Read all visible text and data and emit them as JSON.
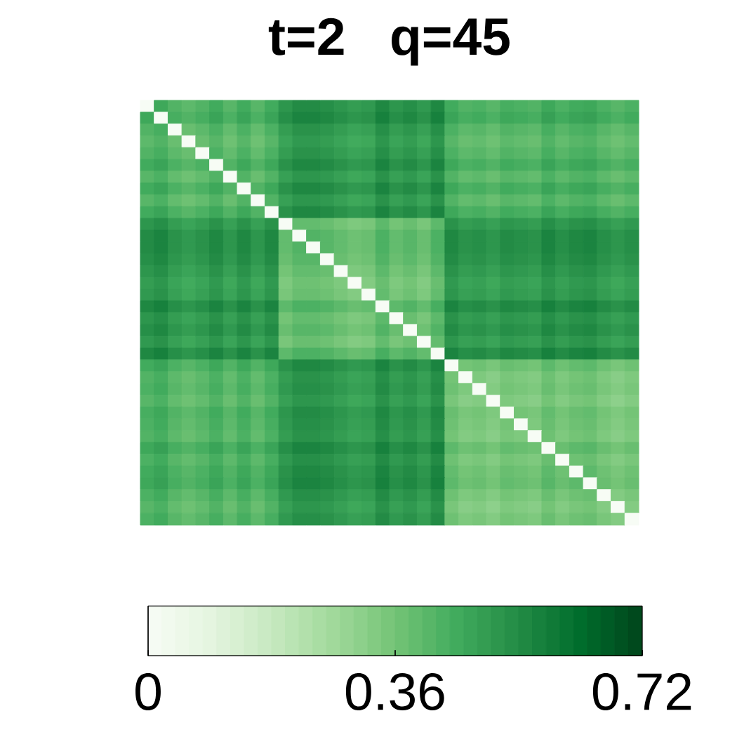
{
  "chart_data": {
    "type": "heatmap",
    "title": "t=2   q=45",
    "categories": [
      null,
      null,
      null,
      null,
      null,
      null,
      null,
      null,
      null,
      null,
      null,
      null,
      null,
      null,
      null,
      null,
      null,
      null,
      null,
      null,
      null,
      null,
      null,
      null,
      null,
      null,
      null,
      null,
      null,
      null,
      null,
      null,
      null,
      null,
      null,
      null
    ],
    "y_categories": [
      null,
      null,
      null,
      null,
      null,
      null,
      null,
      null,
      null,
      null,
      null,
      null,
      null,
      null,
      null,
      null,
      null,
      null,
      null,
      null,
      null,
      null,
      null,
      null,
      null,
      null,
      null,
      null,
      null,
      null,
      null,
      null,
      null,
      null,
      null,
      null
    ],
    "cells": [
      [
        0,
        0.46,
        0.42,
        0.4,
        0.42,
        0.45,
        0.41,
        0.45,
        0.41,
        0.45,
        0.51,
        0.54,
        0.54,
        0.53,
        0.51,
        0.49,
        0.5,
        0.55,
        0.51,
        0.53,
        0.5,
        0.55,
        0.45,
        0.42,
        0.43,
        0.41,
        0.44,
        0.43,
        0.42,
        0.46,
        0.43,
        0.45,
        0.46,
        0.43,
        0.41,
        0.43
      ],
      [
        0.46,
        0,
        0.44,
        0.42,
        0.44,
        0.47,
        0.43,
        0.47,
        0.43,
        0.47,
        0.53,
        0.56,
        0.56,
        0.55,
        0.53,
        0.51,
        0.52,
        0.57,
        0.53,
        0.55,
        0.52,
        0.57,
        0.47,
        0.44,
        0.45,
        0.43,
        0.46,
        0.45,
        0.44,
        0.48,
        0.45,
        0.47,
        0.48,
        0.45,
        0.43,
        0.45
      ],
      [
        0.42,
        0.44,
        0,
        0.38,
        0.4,
        0.43,
        0.39,
        0.43,
        0.39,
        0.43,
        0.49,
        0.52,
        0.52,
        0.51,
        0.49,
        0.47,
        0.48,
        0.53,
        0.49,
        0.51,
        0.48,
        0.53,
        0.43,
        0.4,
        0.41,
        0.39,
        0.42,
        0.41,
        0.4,
        0.44,
        0.41,
        0.43,
        0.44,
        0.41,
        0.39,
        0.41
      ],
      [
        0.4,
        0.42,
        0.38,
        0,
        0.38,
        0.41,
        0.37,
        0.41,
        0.37,
        0.41,
        0.47,
        0.5,
        0.5,
        0.49,
        0.47,
        0.45,
        0.46,
        0.51,
        0.47,
        0.49,
        0.46,
        0.51,
        0.41,
        0.38,
        0.39,
        0.37,
        0.4,
        0.39,
        0.38,
        0.42,
        0.39,
        0.41,
        0.42,
        0.39,
        0.37,
        0.39
      ],
      [
        0.42,
        0.44,
        0.4,
        0.38,
        0,
        0.43,
        0.39,
        0.43,
        0.39,
        0.43,
        0.49,
        0.52,
        0.52,
        0.51,
        0.49,
        0.47,
        0.48,
        0.53,
        0.49,
        0.51,
        0.48,
        0.53,
        0.43,
        0.4,
        0.41,
        0.39,
        0.42,
        0.41,
        0.4,
        0.44,
        0.41,
        0.43,
        0.44,
        0.41,
        0.39,
        0.41
      ],
      [
        0.45,
        0.47,
        0.43,
        0.41,
        0.43,
        0,
        0.42,
        0.46,
        0.42,
        0.46,
        0.52,
        0.55,
        0.55,
        0.54,
        0.52,
        0.5,
        0.51,
        0.56,
        0.52,
        0.54,
        0.51,
        0.56,
        0.46,
        0.43,
        0.44,
        0.42,
        0.45,
        0.44,
        0.43,
        0.47,
        0.44,
        0.46,
        0.47,
        0.44,
        0.42,
        0.44
      ],
      [
        0.41,
        0.43,
        0.39,
        0.37,
        0.39,
        0.42,
        0,
        0.42,
        0.38,
        0.42,
        0.48,
        0.51,
        0.51,
        0.5,
        0.48,
        0.46,
        0.47,
        0.52,
        0.48,
        0.5,
        0.47,
        0.52,
        0.42,
        0.39,
        0.4,
        0.38,
        0.41,
        0.4,
        0.39,
        0.43,
        0.4,
        0.42,
        0.43,
        0.4,
        0.38,
        0.4
      ],
      [
        0.45,
        0.47,
        0.43,
        0.41,
        0.43,
        0.46,
        0.42,
        0,
        0.42,
        0.46,
        0.52,
        0.55,
        0.55,
        0.54,
        0.52,
        0.5,
        0.51,
        0.56,
        0.52,
        0.54,
        0.51,
        0.56,
        0.46,
        0.43,
        0.44,
        0.42,
        0.45,
        0.44,
        0.43,
        0.47,
        0.44,
        0.46,
        0.47,
        0.44,
        0.42,
        0.44
      ],
      [
        0.41,
        0.43,
        0.39,
        0.37,
        0.39,
        0.42,
        0.38,
        0.42,
        0,
        0.42,
        0.48,
        0.51,
        0.51,
        0.5,
        0.48,
        0.46,
        0.47,
        0.52,
        0.48,
        0.5,
        0.47,
        0.52,
        0.42,
        0.39,
        0.4,
        0.38,
        0.41,
        0.4,
        0.39,
        0.43,
        0.4,
        0.42,
        0.43,
        0.4,
        0.38,
        0.4
      ],
      [
        0.45,
        0.47,
        0.43,
        0.41,
        0.43,
        0.46,
        0.42,
        0.46,
        0.42,
        0,
        0.52,
        0.55,
        0.55,
        0.54,
        0.52,
        0.5,
        0.51,
        0.56,
        0.52,
        0.54,
        0.51,
        0.56,
        0.46,
        0.43,
        0.44,
        0.42,
        0.45,
        0.44,
        0.43,
        0.47,
        0.44,
        0.46,
        0.47,
        0.44,
        0.42,
        0.44
      ],
      [
        0.51,
        0.53,
        0.49,
        0.47,
        0.49,
        0.52,
        0.48,
        0.52,
        0.48,
        0.52,
        0,
        0.39,
        0.39,
        0.38,
        0.36,
        0.34,
        0.35,
        0.4,
        0.36,
        0.38,
        0.35,
        0.4,
        0.52,
        0.49,
        0.5,
        0.48,
        0.51,
        0.5,
        0.49,
        0.53,
        0.5,
        0.52,
        0.53,
        0.5,
        0.48,
        0.5
      ],
      [
        0.54,
        0.56,
        0.52,
        0.5,
        0.52,
        0.55,
        0.51,
        0.55,
        0.51,
        0.55,
        0.39,
        0,
        0.42,
        0.41,
        0.39,
        0.37,
        0.38,
        0.43,
        0.39,
        0.41,
        0.38,
        0.43,
        0.55,
        0.52,
        0.53,
        0.51,
        0.54,
        0.53,
        0.52,
        0.56,
        0.53,
        0.55,
        0.56,
        0.53,
        0.51,
        0.53
      ],
      [
        0.54,
        0.56,
        0.52,
        0.5,
        0.52,
        0.55,
        0.51,
        0.55,
        0.51,
        0.55,
        0.39,
        0.42,
        0,
        0.41,
        0.39,
        0.37,
        0.38,
        0.43,
        0.39,
        0.41,
        0.38,
        0.43,
        0.55,
        0.52,
        0.53,
        0.51,
        0.54,
        0.53,
        0.52,
        0.56,
        0.53,
        0.55,
        0.56,
        0.53,
        0.51,
        0.53
      ],
      [
        0.53,
        0.55,
        0.51,
        0.49,
        0.51,
        0.54,
        0.5,
        0.54,
        0.5,
        0.54,
        0.38,
        0.41,
        0.41,
        0,
        0.38,
        0.36,
        0.37,
        0.42,
        0.38,
        0.4,
        0.37,
        0.42,
        0.54,
        0.51,
        0.52,
        0.5,
        0.53,
        0.52,
        0.51,
        0.55,
        0.52,
        0.54,
        0.55,
        0.52,
        0.5,
        0.52
      ],
      [
        0.51,
        0.53,
        0.49,
        0.47,
        0.49,
        0.52,
        0.48,
        0.52,
        0.48,
        0.52,
        0.36,
        0.39,
        0.39,
        0.38,
        0,
        0.34,
        0.35,
        0.4,
        0.36,
        0.38,
        0.35,
        0.4,
        0.52,
        0.49,
        0.5,
        0.48,
        0.51,
        0.5,
        0.49,
        0.53,
        0.5,
        0.52,
        0.53,
        0.5,
        0.48,
        0.5
      ],
      [
        0.49,
        0.51,
        0.47,
        0.45,
        0.47,
        0.5,
        0.46,
        0.5,
        0.46,
        0.5,
        0.34,
        0.37,
        0.37,
        0.36,
        0.34,
        0,
        0.33,
        0.38,
        0.34,
        0.36,
        0.33,
        0.38,
        0.5,
        0.47,
        0.48,
        0.46,
        0.49,
        0.48,
        0.47,
        0.51,
        0.48,
        0.5,
        0.51,
        0.48,
        0.46,
        0.48
      ],
      [
        0.5,
        0.52,
        0.48,
        0.46,
        0.48,
        0.51,
        0.47,
        0.51,
        0.47,
        0.51,
        0.35,
        0.38,
        0.38,
        0.37,
        0.35,
        0.33,
        0,
        0.39,
        0.35,
        0.37,
        0.34,
        0.39,
        0.51,
        0.48,
        0.49,
        0.47,
        0.5,
        0.49,
        0.48,
        0.52,
        0.49,
        0.51,
        0.52,
        0.49,
        0.47,
        0.49
      ],
      [
        0.55,
        0.57,
        0.53,
        0.51,
        0.53,
        0.56,
        0.52,
        0.56,
        0.52,
        0.56,
        0.4,
        0.43,
        0.43,
        0.42,
        0.4,
        0.38,
        0.39,
        0,
        0.4,
        0.42,
        0.39,
        0.44,
        0.56,
        0.53,
        0.54,
        0.52,
        0.55,
        0.54,
        0.53,
        0.57,
        0.54,
        0.56,
        0.57,
        0.54,
        0.52,
        0.54
      ],
      [
        0.51,
        0.53,
        0.49,
        0.47,
        0.49,
        0.52,
        0.48,
        0.52,
        0.48,
        0.52,
        0.36,
        0.39,
        0.39,
        0.38,
        0.36,
        0.34,
        0.35,
        0.4,
        0,
        0.38,
        0.35,
        0.4,
        0.52,
        0.49,
        0.5,
        0.48,
        0.51,
        0.5,
        0.49,
        0.53,
        0.5,
        0.52,
        0.53,
        0.5,
        0.48,
        0.5
      ],
      [
        0.53,
        0.55,
        0.51,
        0.49,
        0.51,
        0.54,
        0.5,
        0.54,
        0.5,
        0.54,
        0.38,
        0.41,
        0.41,
        0.4,
        0.38,
        0.36,
        0.37,
        0.42,
        0.38,
        0,
        0.37,
        0.42,
        0.54,
        0.51,
        0.52,
        0.5,
        0.53,
        0.52,
        0.51,
        0.55,
        0.52,
        0.54,
        0.55,
        0.52,
        0.5,
        0.52
      ],
      [
        0.5,
        0.52,
        0.48,
        0.46,
        0.48,
        0.51,
        0.47,
        0.51,
        0.47,
        0.51,
        0.35,
        0.38,
        0.38,
        0.37,
        0.35,
        0.33,
        0.34,
        0.39,
        0.35,
        0.37,
        0,
        0.39,
        0.51,
        0.48,
        0.49,
        0.47,
        0.5,
        0.49,
        0.48,
        0.52,
        0.49,
        0.51,
        0.52,
        0.49,
        0.47,
        0.49
      ],
      [
        0.55,
        0.57,
        0.53,
        0.51,
        0.53,
        0.56,
        0.52,
        0.56,
        0.52,
        0.56,
        0.4,
        0.43,
        0.43,
        0.42,
        0.4,
        0.38,
        0.39,
        0.44,
        0.4,
        0.42,
        0.39,
        0,
        0.56,
        0.53,
        0.54,
        0.52,
        0.55,
        0.54,
        0.53,
        0.57,
        0.54,
        0.56,
        0.57,
        0.54,
        0.52,
        0.54
      ],
      [
        0.45,
        0.47,
        0.43,
        0.41,
        0.43,
        0.46,
        0.42,
        0.46,
        0.42,
        0.46,
        0.52,
        0.55,
        0.55,
        0.54,
        0.52,
        0.5,
        0.51,
        0.56,
        0.52,
        0.54,
        0.51,
        0.56,
        0,
        0.36,
        0.37,
        0.35,
        0.38,
        0.37,
        0.36,
        0.4,
        0.37,
        0.39,
        0.4,
        0.37,
        0.35,
        0.37
      ],
      [
        0.42,
        0.44,
        0.4,
        0.38,
        0.4,
        0.43,
        0.39,
        0.43,
        0.39,
        0.43,
        0.49,
        0.52,
        0.52,
        0.51,
        0.49,
        0.47,
        0.48,
        0.53,
        0.49,
        0.51,
        0.48,
        0.53,
        0.36,
        0,
        0.34,
        0.32,
        0.35,
        0.34,
        0.33,
        0.37,
        0.34,
        0.36,
        0.37,
        0.34,
        0.32,
        0.34
      ],
      [
        0.43,
        0.45,
        0.41,
        0.39,
        0.41,
        0.44,
        0.4,
        0.44,
        0.4,
        0.44,
        0.5,
        0.53,
        0.53,
        0.52,
        0.5,
        0.48,
        0.49,
        0.54,
        0.5,
        0.52,
        0.49,
        0.54,
        0.37,
        0.34,
        0,
        0.33,
        0.36,
        0.35,
        0.34,
        0.38,
        0.35,
        0.37,
        0.38,
        0.35,
        0.33,
        0.35
      ],
      [
        0.41,
        0.43,
        0.39,
        0.37,
        0.39,
        0.42,
        0.38,
        0.42,
        0.38,
        0.42,
        0.48,
        0.51,
        0.51,
        0.5,
        0.48,
        0.46,
        0.47,
        0.52,
        0.48,
        0.5,
        0.47,
        0.52,
        0.35,
        0.32,
        0.33,
        0,
        0.34,
        0.33,
        0.32,
        0.36,
        0.33,
        0.35,
        0.36,
        0.33,
        0.31,
        0.33
      ],
      [
        0.44,
        0.46,
        0.42,
        0.4,
        0.42,
        0.45,
        0.41,
        0.45,
        0.41,
        0.45,
        0.51,
        0.54,
        0.54,
        0.53,
        0.51,
        0.49,
        0.5,
        0.55,
        0.51,
        0.53,
        0.5,
        0.55,
        0.38,
        0.35,
        0.36,
        0.34,
        0,
        0.36,
        0.35,
        0.39,
        0.36,
        0.38,
        0.39,
        0.36,
        0.34,
        0.36
      ],
      [
        0.43,
        0.45,
        0.41,
        0.39,
        0.41,
        0.44,
        0.4,
        0.44,
        0.4,
        0.44,
        0.5,
        0.53,
        0.53,
        0.52,
        0.5,
        0.48,
        0.49,
        0.54,
        0.5,
        0.52,
        0.49,
        0.54,
        0.37,
        0.34,
        0.35,
        0.33,
        0.36,
        0,
        0.34,
        0.38,
        0.35,
        0.37,
        0.38,
        0.35,
        0.33,
        0.35
      ],
      [
        0.42,
        0.44,
        0.4,
        0.38,
        0.4,
        0.43,
        0.39,
        0.43,
        0.39,
        0.43,
        0.49,
        0.52,
        0.52,
        0.51,
        0.49,
        0.47,
        0.48,
        0.53,
        0.49,
        0.51,
        0.48,
        0.53,
        0.36,
        0.33,
        0.34,
        0.32,
        0.35,
        0.34,
        0,
        0.37,
        0.34,
        0.36,
        0.37,
        0.34,
        0.32,
        0.34
      ],
      [
        0.46,
        0.48,
        0.44,
        0.42,
        0.44,
        0.47,
        0.43,
        0.47,
        0.43,
        0.47,
        0.53,
        0.56,
        0.56,
        0.55,
        0.53,
        0.51,
        0.52,
        0.57,
        0.53,
        0.55,
        0.52,
        0.57,
        0.4,
        0.37,
        0.38,
        0.36,
        0.39,
        0.38,
        0.37,
        0,
        0.38,
        0.4,
        0.41,
        0.38,
        0.36,
        0.38
      ],
      [
        0.43,
        0.45,
        0.41,
        0.39,
        0.41,
        0.44,
        0.4,
        0.44,
        0.4,
        0.44,
        0.5,
        0.53,
        0.53,
        0.52,
        0.5,
        0.48,
        0.49,
        0.54,
        0.5,
        0.52,
        0.49,
        0.54,
        0.37,
        0.34,
        0.35,
        0.33,
        0.36,
        0.35,
        0.34,
        0.38,
        0,
        0.37,
        0.38,
        0.35,
        0.33,
        0.35
      ],
      [
        0.45,
        0.47,
        0.43,
        0.41,
        0.43,
        0.46,
        0.42,
        0.46,
        0.42,
        0.46,
        0.52,
        0.55,
        0.55,
        0.54,
        0.52,
        0.5,
        0.51,
        0.56,
        0.52,
        0.54,
        0.51,
        0.56,
        0.39,
        0.36,
        0.37,
        0.35,
        0.38,
        0.37,
        0.36,
        0.4,
        0.37,
        0,
        0.4,
        0.37,
        0.35,
        0.37
      ],
      [
        0.46,
        0.48,
        0.44,
        0.42,
        0.44,
        0.47,
        0.43,
        0.47,
        0.43,
        0.47,
        0.53,
        0.56,
        0.56,
        0.55,
        0.53,
        0.51,
        0.52,
        0.57,
        0.53,
        0.55,
        0.52,
        0.57,
        0.4,
        0.37,
        0.38,
        0.36,
        0.39,
        0.38,
        0.37,
        0.41,
        0.38,
        0.4,
        0,
        0.38,
        0.36,
        0.38
      ],
      [
        0.43,
        0.45,
        0.41,
        0.39,
        0.41,
        0.44,
        0.4,
        0.44,
        0.4,
        0.44,
        0.5,
        0.53,
        0.53,
        0.52,
        0.5,
        0.48,
        0.49,
        0.54,
        0.5,
        0.52,
        0.49,
        0.54,
        0.37,
        0.34,
        0.35,
        0.33,
        0.36,
        0.35,
        0.34,
        0.38,
        0.35,
        0.37,
        0.38,
        0,
        0.33,
        0.35
      ],
      [
        0.41,
        0.43,
        0.39,
        0.37,
        0.39,
        0.42,
        0.38,
        0.42,
        0.38,
        0.42,
        0.48,
        0.51,
        0.51,
        0.5,
        0.48,
        0.46,
        0.47,
        0.52,
        0.48,
        0.5,
        0.47,
        0.52,
        0.35,
        0.32,
        0.33,
        0.31,
        0.34,
        0.33,
        0.32,
        0.36,
        0.33,
        0.35,
        0.36,
        0.33,
        0,
        0.33
      ],
      [
        0.43,
        0.45,
        0.41,
        0.39,
        0.41,
        0.44,
        0.4,
        0.44,
        0.4,
        0.44,
        0.5,
        0.53,
        0.53,
        0.52,
        0.5,
        0.48,
        0.49,
        0.54,
        0.5,
        0.52,
        0.49,
        0.54,
        0.37,
        0.34,
        0.35,
        0.33,
        0.36,
        0.35,
        0.34,
        0.38,
        0.35,
        0.37,
        0.38,
        0.35,
        0.33,
        0
      ]
    ],
    "clim": [
      0,
      0.72
    ],
    "cticks": [
      0,
      0.36,
      0.72
    ]
  }
}
